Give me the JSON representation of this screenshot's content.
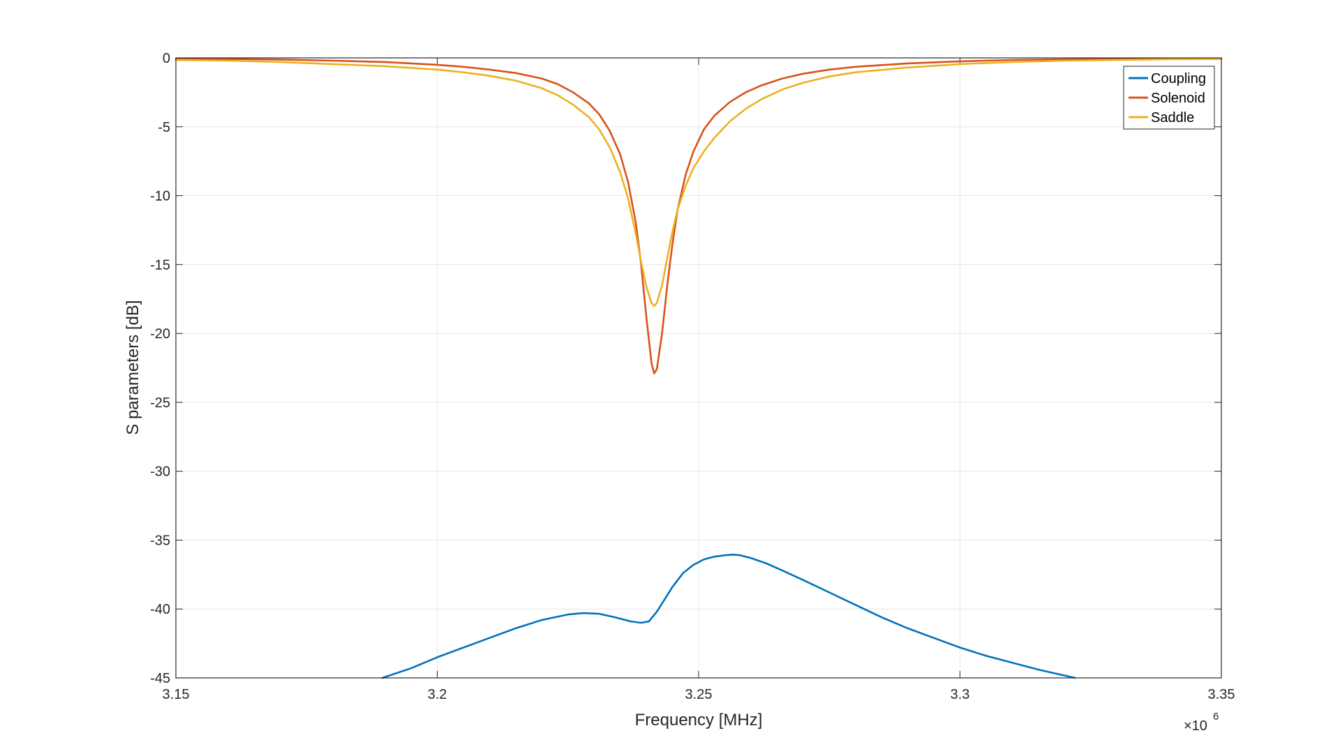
{
  "chart_data": {
    "type": "line",
    "title": "",
    "xlabel": "Frequency [MHz]",
    "ylabel": "S parameters [dB]",
    "xlim": [
      3150000,
      3350000
    ],
    "ylim": [
      -45,
      0
    ],
    "x_ticks": [
      3150000,
      3200000,
      3250000,
      3300000,
      3350000
    ],
    "x_tick_labels": [
      "3.15",
      "3.2",
      "3.25",
      "3.3",
      "3.35"
    ],
    "x_exponent_base": "×10",
    "x_exponent_power": "6",
    "y_ticks": [
      0,
      -5,
      -10,
      -15,
      -20,
      -25,
      -30,
      -35,
      -40,
      -45
    ],
    "y_tick_labels": [
      "0",
      "-5",
      "-10",
      "-15",
      "-20",
      "-25",
      "-30",
      "-35",
      "-40",
      "-45"
    ],
    "grid": true,
    "legend_position": "top-right",
    "series": [
      {
        "name": "Coupling",
        "color": "#0072BD",
        "x": [
          3189500,
          3195000,
          3200000,
          3205000,
          3210000,
          3215000,
          3220000,
          3225000,
          3228000,
          3231000,
          3234000,
          3237000,
          3239000,
          3240500,
          3242000,
          3243500,
          3245000,
          3247000,
          3249000,
          3251000,
          3253000,
          3255000,
          3256500,
          3258000,
          3260000,
          3263000,
          3266000,
          3270000,
          3275000,
          3280000,
          3285000,
          3290000,
          3295000,
          3300000,
          3305000,
          3310000,
          3315000,
          3322000
        ],
        "y": [
          -45.0,
          -44.3,
          -43.5,
          -42.8,
          -42.1,
          -41.4,
          -40.8,
          -40.4,
          -40.3,
          -40.35,
          -40.6,
          -40.9,
          -41.0,
          -40.9,
          -40.2,
          -39.3,
          -38.4,
          -37.4,
          -36.8,
          -36.4,
          -36.2,
          -36.1,
          -36.05,
          -36.1,
          -36.3,
          -36.7,
          -37.2,
          -37.9,
          -38.8,
          -39.7,
          -40.6,
          -41.4,
          -42.1,
          -42.8,
          -43.4,
          -43.9,
          -44.4,
          -45.0
        ]
      },
      {
        "name": "Solenoid",
        "color": "#D95319",
        "x": [
          3150000,
          3160000,
          3170000,
          3180000,
          3190000,
          3200000,
          3205000,
          3210000,
          3215000,
          3220000,
          3223000,
          3226000,
          3229000,
          3231000,
          3233000,
          3235000,
          3236500,
          3238000,
          3239000,
          3240000,
          3241000,
          3241500,
          3242000,
          3243000,
          3244000,
          3245000,
          3246000,
          3247500,
          3249000,
          3251000,
          3253000,
          3256000,
          3259000,
          3262000,
          3266000,
          3270000,
          3275000,
          3280000,
          3290000,
          3300000,
          3310000,
          3320000,
          3330000,
          3340000,
          3350000
        ],
        "y": [
          -0.05,
          -0.08,
          -0.12,
          -0.2,
          -0.3,
          -0.5,
          -0.65,
          -0.85,
          -1.1,
          -1.5,
          -1.9,
          -2.5,
          -3.3,
          -4.1,
          -5.3,
          -7.0,
          -9.0,
          -12.0,
          -15.0,
          -18.8,
          -22.2,
          -22.9,
          -22.6,
          -20.0,
          -16.5,
          -13.5,
          -11.0,
          -8.5,
          -6.8,
          -5.2,
          -4.2,
          -3.2,
          -2.5,
          -2.0,
          -1.5,
          -1.15,
          -0.85,
          -0.65,
          -0.4,
          -0.25,
          -0.15,
          -0.1,
          -0.07,
          -0.05,
          -0.04
        ]
      },
      {
        "name": "Saddle",
        "color": "#EDB120",
        "x": [
          3150000,
          3160000,
          3170000,
          3180000,
          3190000,
          3200000,
          3205000,
          3210000,
          3215000,
          3220000,
          3223000,
          3226000,
          3229000,
          3231000,
          3233000,
          3235000,
          3236500,
          3238000,
          3239000,
          3240000,
          3241000,
          3241500,
          3242000,
          3243000,
          3244000,
          3245000,
          3246000,
          3247500,
          3249000,
          3251000,
          3253000,
          3256000,
          3259000,
          3262000,
          3266000,
          3270000,
          3275000,
          3280000,
          3290000,
          3300000,
          3310000,
          3320000,
          3330000,
          3340000,
          3350000
        ],
        "y": [
          -0.15,
          -0.2,
          -0.3,
          -0.45,
          -0.6,
          -0.85,
          -1.05,
          -1.3,
          -1.65,
          -2.2,
          -2.7,
          -3.4,
          -4.3,
          -5.2,
          -6.5,
          -8.3,
          -10.2,
          -12.8,
          -14.8,
          -16.6,
          -17.8,
          -18.0,
          -17.8,
          -16.5,
          -14.5,
          -12.6,
          -11.0,
          -9.3,
          -8.0,
          -6.8,
          -5.8,
          -4.6,
          -3.7,
          -3.0,
          -2.3,
          -1.8,
          -1.35,
          -1.05,
          -0.7,
          -0.45,
          -0.3,
          -0.2,
          -0.15,
          -0.1,
          -0.08
        ]
      }
    ]
  }
}
